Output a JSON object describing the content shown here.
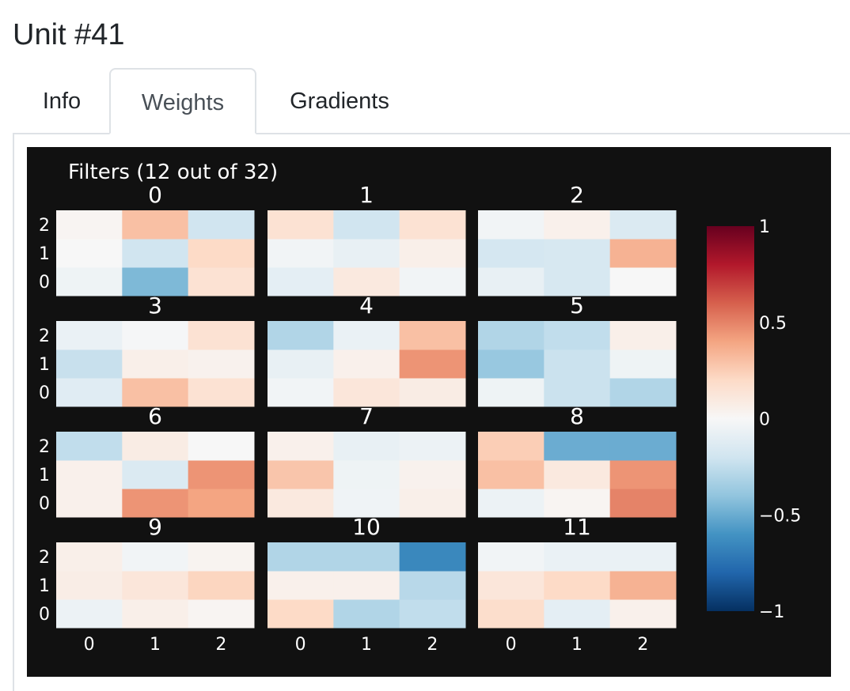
{
  "page": {
    "title": "Unit #41"
  },
  "tabs": [
    {
      "label": "Info",
      "active": false
    },
    {
      "label": "Weights",
      "active": true
    },
    {
      "label": "Gradients",
      "active": false
    }
  ],
  "chart_data": {
    "type": "heatmap",
    "title": "Filters (12 out of 32)",
    "x_ticks": [
      "0",
      "1",
      "2"
    ],
    "y_ticks": [
      "0",
      "1",
      "2"
    ],
    "colorscale": "RdBu",
    "zmin": -1,
    "zmax": 1,
    "colorbar": {
      "tickvals": [
        1,
        0.5,
        0,
        -0.5,
        -1
      ],
      "ticktext": [
        "1",
        "0.5",
        "0",
        "−0.5",
        "−1"
      ]
    },
    "filters": [
      {
        "name": "0",
        "z": [
          [
            -0.05,
            -0.45,
            0.15
          ],
          [
            0.0,
            -0.2,
            0.2
          ],
          [
            0.02,
            0.3,
            -0.2
          ]
        ]
      },
      {
        "name": "1",
        "z": [
          [
            -0.1,
            0.1,
            -0.03
          ],
          [
            -0.03,
            -0.08,
            0.06
          ],
          [
            0.15,
            -0.2,
            0.15
          ]
        ]
      },
      {
        "name": "2",
        "z": [
          [
            -0.08,
            -0.17,
            0.0
          ],
          [
            -0.18,
            -0.17,
            0.35
          ],
          [
            -0.03,
            0.05,
            -0.15
          ]
        ]
      },
      {
        "name": "3",
        "z": [
          [
            -0.12,
            0.3,
            0.15
          ],
          [
            -0.23,
            0.06,
            0.04
          ],
          [
            -0.07,
            -0.01,
            0.15
          ]
        ]
      },
      {
        "name": "4",
        "z": [
          [
            -0.03,
            0.12,
            0.08
          ],
          [
            -0.08,
            0.05,
            0.45
          ],
          [
            -0.3,
            -0.07,
            0.3
          ]
        ]
      },
      {
        "name": "5",
        "z": [
          [
            -0.05,
            -0.22,
            -0.3
          ],
          [
            -0.38,
            -0.22,
            -0.05
          ],
          [
            -0.3,
            -0.25,
            0.06
          ]
        ]
      },
      {
        "name": "6",
        "z": [
          [
            0.05,
            0.45,
            0.4
          ],
          [
            0.05,
            -0.15,
            0.45
          ],
          [
            -0.25,
            0.08,
            0.0
          ]
        ]
      },
      {
        "name": "7",
        "z": [
          [
            0.1,
            -0.04,
            0.06
          ],
          [
            0.28,
            -0.05,
            0.04
          ],
          [
            0.05,
            -0.08,
            -0.06
          ]
        ]
      },
      {
        "name": "8",
        "z": [
          [
            -0.06,
            0.02,
            0.5
          ],
          [
            0.3,
            0.1,
            0.45
          ],
          [
            0.25,
            -0.5,
            -0.5
          ]
        ]
      },
      {
        "name": "9",
        "z": [
          [
            -0.06,
            0.06,
            0.02
          ],
          [
            0.07,
            0.12,
            0.22
          ],
          [
            0.06,
            -0.03,
            0.03
          ]
        ]
      },
      {
        "name": "10",
        "z": [
          [
            0.2,
            -0.3,
            -0.25
          ],
          [
            0.05,
            0.05,
            -0.28
          ],
          [
            -0.3,
            -0.3,
            -0.65
          ]
        ]
      },
      {
        "name": "11",
        "z": [
          [
            0.18,
            -0.1,
            0.05
          ],
          [
            0.12,
            0.2,
            0.35
          ],
          [
            -0.03,
            -0.07,
            -0.07
          ]
        ]
      }
    ]
  }
}
